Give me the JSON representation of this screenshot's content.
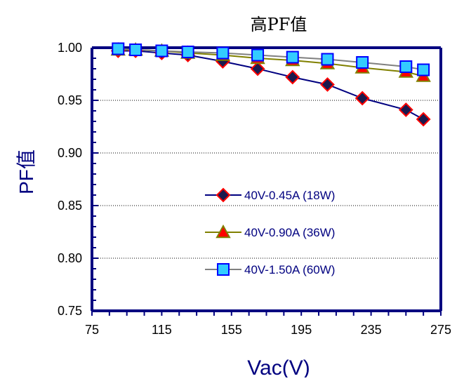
{
  "chart_data": {
    "type": "line",
    "title": "高PF值",
    "xlabel": "Vac(V)",
    "ylabel": "PF值",
    "xlim": [
      75,
      275
    ],
    "ylim": [
      0.75,
      1.0
    ],
    "xticks": [
      "75",
      "115",
      "155",
      "195",
      "235",
      "275"
    ],
    "yticks": [
      "1.00",
      "0.95",
      "0.90",
      "0.85",
      "0.80",
      "0.75"
    ],
    "x": [
      90,
      100,
      115,
      130,
      150,
      170,
      190,
      210,
      230,
      255,
      265
    ],
    "series": [
      {
        "name": "40V-0.45A (18W)",
        "values": [
          0.997,
          0.997,
          0.995,
          0.993,
          0.987,
          0.98,
          0.972,
          0.965,
          0.952,
          0.941,
          0.932
        ],
        "marker": "diamond",
        "line_color": "#000080",
        "marker_fill": "#1a1a4e",
        "marker_edge": "#ff0000"
      },
      {
        "name": "40V-0.90A (36W)",
        "values": [
          0.998,
          0.998,
          0.997,
          0.995,
          0.993,
          0.99,
          0.988,
          0.985,
          0.981,
          0.977,
          0.973
        ],
        "marker": "triangle",
        "line_color": "#808000",
        "marker_fill": "#ff0000",
        "marker_edge": "#808000"
      },
      {
        "name": "40V-1.50A (60W)",
        "values": [
          0.999,
          0.998,
          0.997,
          0.996,
          0.995,
          0.993,
          0.991,
          0.989,
          0.986,
          0.982,
          0.979
        ],
        "marker": "square",
        "line_color": "#808080",
        "marker_fill": "#33ccff",
        "marker_edge": "#0000ff"
      }
    ],
    "grid": "horizontal dotted",
    "legend_position": "inside-lower-middle",
    "colors": {
      "axis": "#000080",
      "grid": "#000000"
    }
  }
}
